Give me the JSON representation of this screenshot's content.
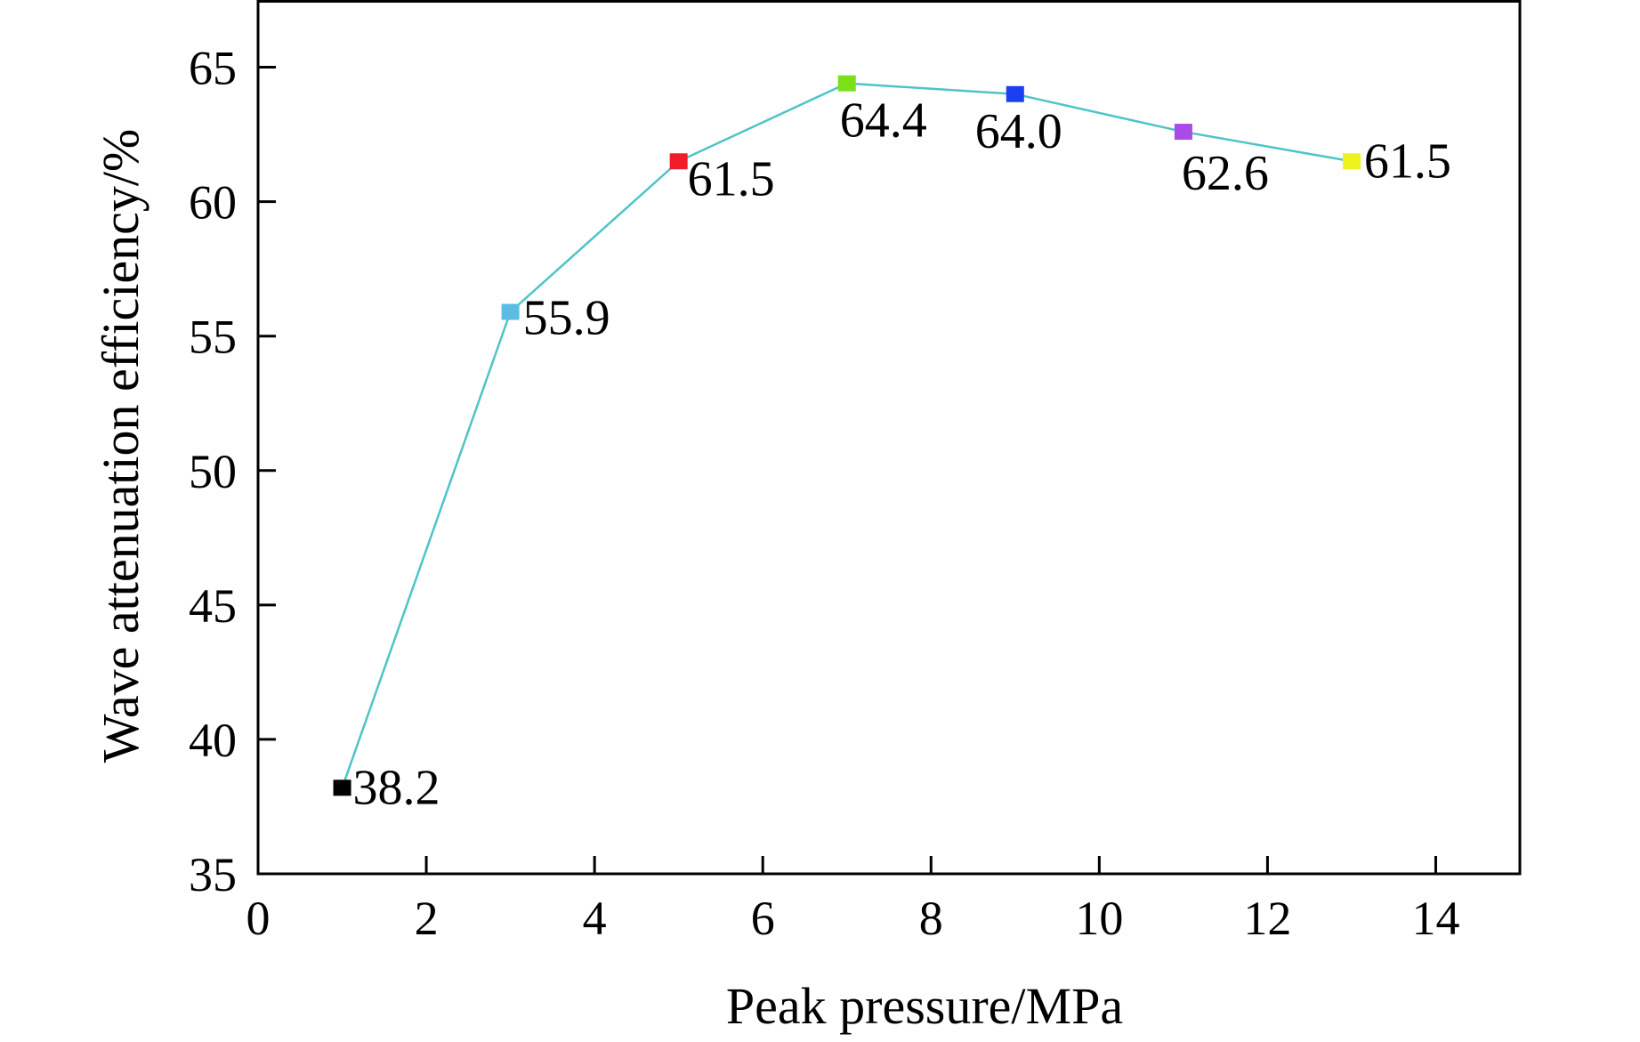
{
  "chart_data": {
    "type": "line",
    "title": "",
    "xlabel": "Peak pressure/MPa",
    "ylabel": "Wave attenuation efficiency/%",
    "xlim": [
      0,
      15
    ],
    "ylim": [
      35,
      67.5
    ],
    "xticks": [
      0,
      2,
      4,
      6,
      8,
      10,
      12,
      14
    ],
    "yticks": [
      35,
      40,
      45,
      50,
      55,
      60,
      65
    ],
    "grid": false,
    "legend": "none",
    "line_color": "#4ec4c8",
    "series": [
      {
        "x": [
          1,
          3,
          5,
          7,
          9,
          11,
          13
        ],
        "y": [
          38.2,
          55.9,
          61.5,
          64.4,
          64.0,
          62.6,
          61.5
        ],
        "labels": [
          "38.2",
          "55.9",
          "61.5",
          "64.4",
          "64.0",
          "62.6",
          "61.5"
        ],
        "marker_colors": [
          "#000000",
          "#5bbde4",
          "#f01c28",
          "#7ce019",
          "#1b3ff0",
          "#a94be6",
          "#eef21e"
        ]
      }
    ]
  }
}
